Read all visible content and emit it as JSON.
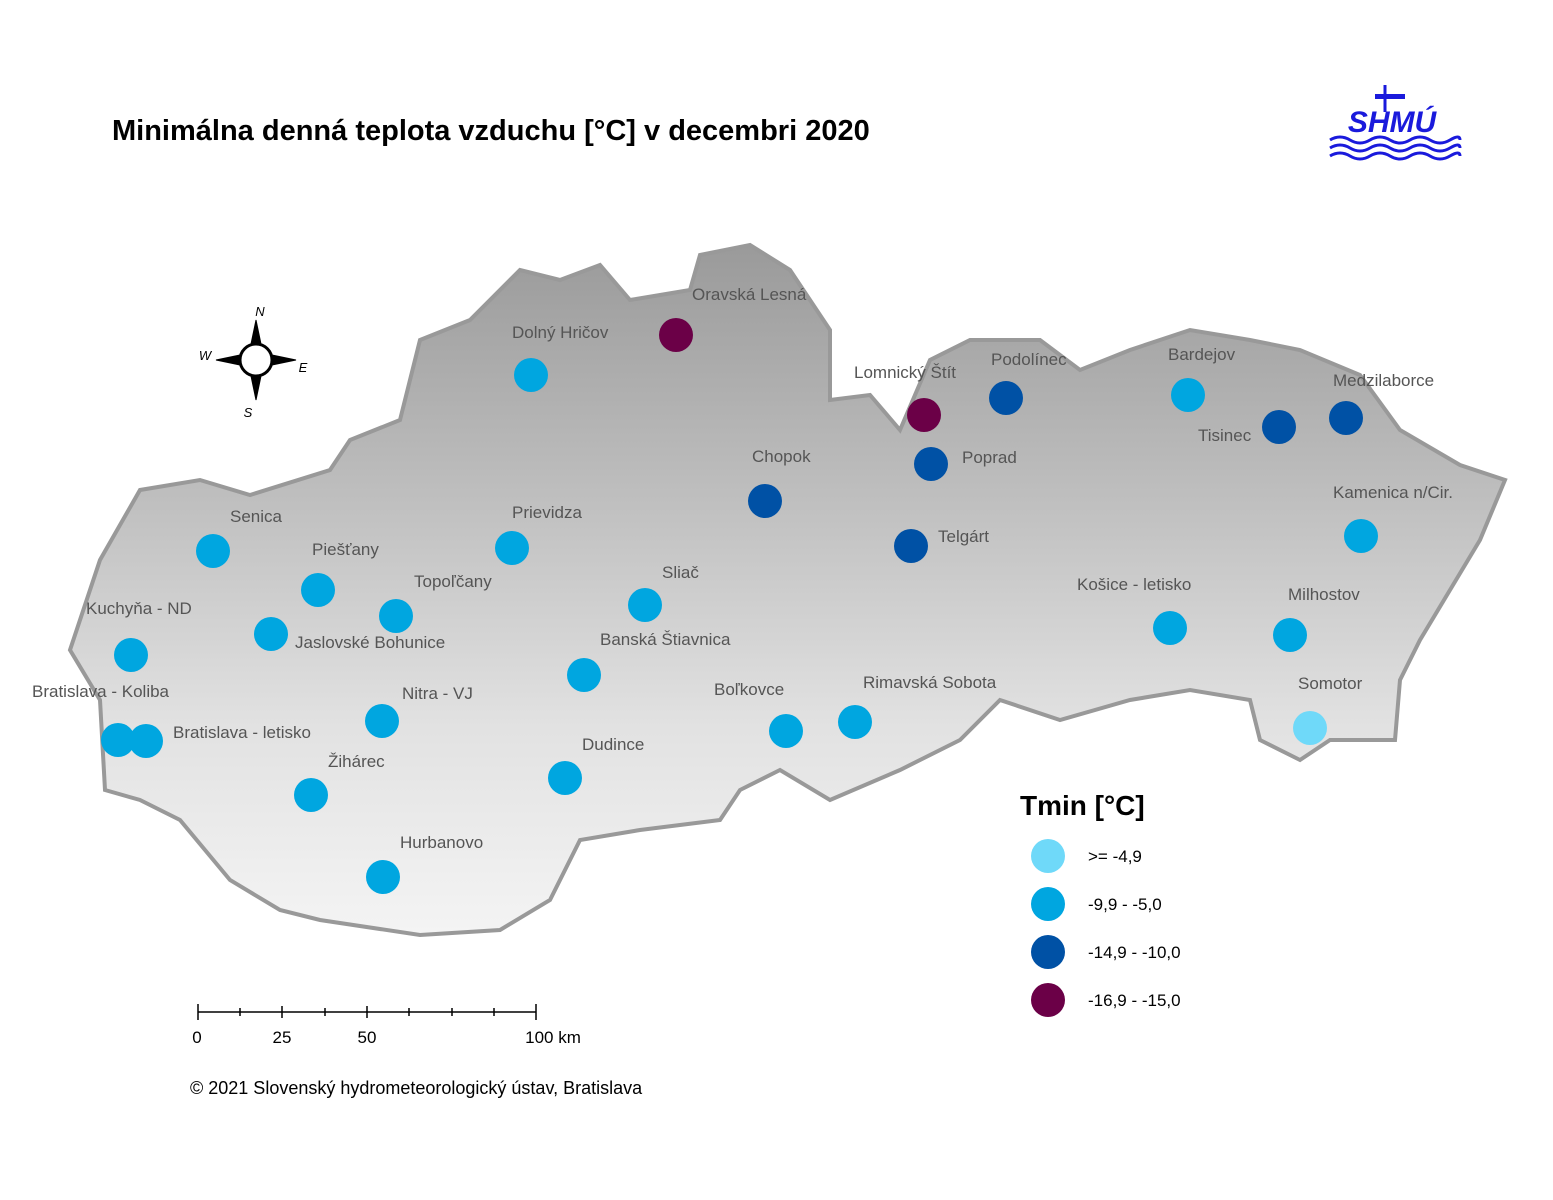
{
  "title": "Minimálna denná teplota vzduchu [°C] v decembri 2020",
  "logo": "SHMÚ",
  "compass": {
    "n": "N",
    "e": "E",
    "s": "S",
    "w": "W"
  },
  "stations": [
    {
      "name": "Oravská Lesná",
      "color": "#6b0047"
    },
    {
      "name": "Dolný Hričov",
      "color": "#00a6e0"
    },
    {
      "name": "Lomnický Štít",
      "color": "#6b0047"
    },
    {
      "name": "Podolínec",
      "color": "#0051a5"
    },
    {
      "name": "Bardejov",
      "color": "#00a6e0"
    },
    {
      "name": "Medzilaborce",
      "color": "#0051a5"
    },
    {
      "name": "Tisinec",
      "color": "#0051a5"
    },
    {
      "name": "Poprad",
      "color": "#0051a5"
    },
    {
      "name": "Chopok",
      "color": "#0051a5"
    },
    {
      "name": "Kamenica n/Cir.",
      "color": "#00a6e0"
    },
    {
      "name": "Telgárt",
      "color": "#0051a5"
    },
    {
      "name": "Senica",
      "color": "#00a6e0"
    },
    {
      "name": "Prievidza",
      "color": "#00a6e0"
    },
    {
      "name": "Piešťany",
      "color": "#00a6e0"
    },
    {
      "name": "Topoľčany",
      "color": "#00a6e0"
    },
    {
      "name": "Sliač",
      "color": "#00a6e0"
    },
    {
      "name": "Kuchyňa - ND",
      "color": "#00a6e0"
    },
    {
      "name": "Jaslovské Bohunice",
      "color": "#00a6e0"
    },
    {
      "name": "Banská Štiavnica",
      "color": "#00a6e0"
    },
    {
      "name": "Košice - letisko",
      "color": "#00a6e0"
    },
    {
      "name": "Milhostov",
      "color": "#00a6e0"
    },
    {
      "name": "Bratislava - Koliba",
      "color": "#00a6e0"
    },
    {
      "name": "Bratislava - letisko",
      "color": "#00a6e0"
    },
    {
      "name": "Nitra - VJ",
      "color": "#00a6e0"
    },
    {
      "name": "Boľkovce",
      "color": "#00a6e0"
    },
    {
      "name": "Rimavská Sobota",
      "color": "#00a6e0"
    },
    {
      "name": "Somotor",
      "color": "#6fd9f9"
    },
    {
      "name": "Žihárec",
      "color": "#00a6e0"
    },
    {
      "name": "Dudince",
      "color": "#00a6e0"
    },
    {
      "name": "Hurbanovo",
      "color": "#00a6e0"
    }
  ],
  "legend": {
    "title": "Tmin [°C]",
    "items": [
      {
        "label": ">= -4,9",
        "color": "#6fd9f9"
      },
      {
        "label": "-9,9 - -5,0",
        "color": "#00a6e0"
      },
      {
        "label": "-14,9 - -10,0",
        "color": "#0051a5"
      },
      {
        "label": "-16,9 - -15,0",
        "color": "#6b0047"
      }
    ]
  },
  "scale_bar": [
    "0",
    "25",
    "50",
    "100 km"
  ],
  "copyright": "© 2021 Slovenský hydrometeorologický ústav, Bratislava"
}
